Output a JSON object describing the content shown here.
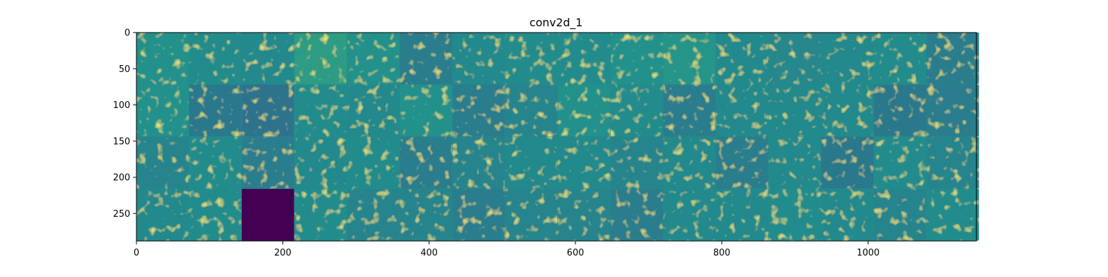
{
  "chart_data": {
    "type": "heatmap",
    "title": "conv2d_1",
    "xlabel": "",
    "ylabel": "",
    "colormap": "viridis",
    "grid": false,
    "xlim": [
      0,
      1148
    ],
    "ylim": [
      288,
      0
    ],
    "x_ticks": [
      0,
      200,
      400,
      600,
      800,
      1000
    ],
    "y_ticks": [
      0,
      50,
      100,
      150,
      200,
      250
    ],
    "tile_size": 72,
    "rows": 4,
    "cols": 16,
    "background_value": 0.48,
    "tile_values": [
      [
        0.5,
        0.48,
        0.47,
        0.55,
        0.5,
        0.42,
        0.47,
        0.48,
        0.48,
        0.5,
        0.52,
        0.47,
        0.46,
        0.47,
        0.48,
        0.42
      ],
      [
        0.5,
        0.4,
        0.38,
        0.48,
        0.47,
        0.5,
        0.42,
        0.45,
        0.5,
        0.48,
        0.42,
        0.47,
        0.47,
        0.47,
        0.4,
        0.42
      ],
      [
        0.45,
        0.48,
        0.42,
        0.47,
        0.48,
        0.42,
        0.45,
        0.47,
        0.47,
        0.45,
        0.47,
        0.42,
        0.47,
        0.4,
        0.48,
        0.45
      ],
      [
        0.47,
        0.48,
        0.0,
        0.48,
        0.45,
        0.45,
        0.42,
        0.45,
        0.45,
        0.42,
        0.47,
        0.47,
        0.48,
        0.47,
        0.45,
        0.48
      ]
    ]
  }
}
